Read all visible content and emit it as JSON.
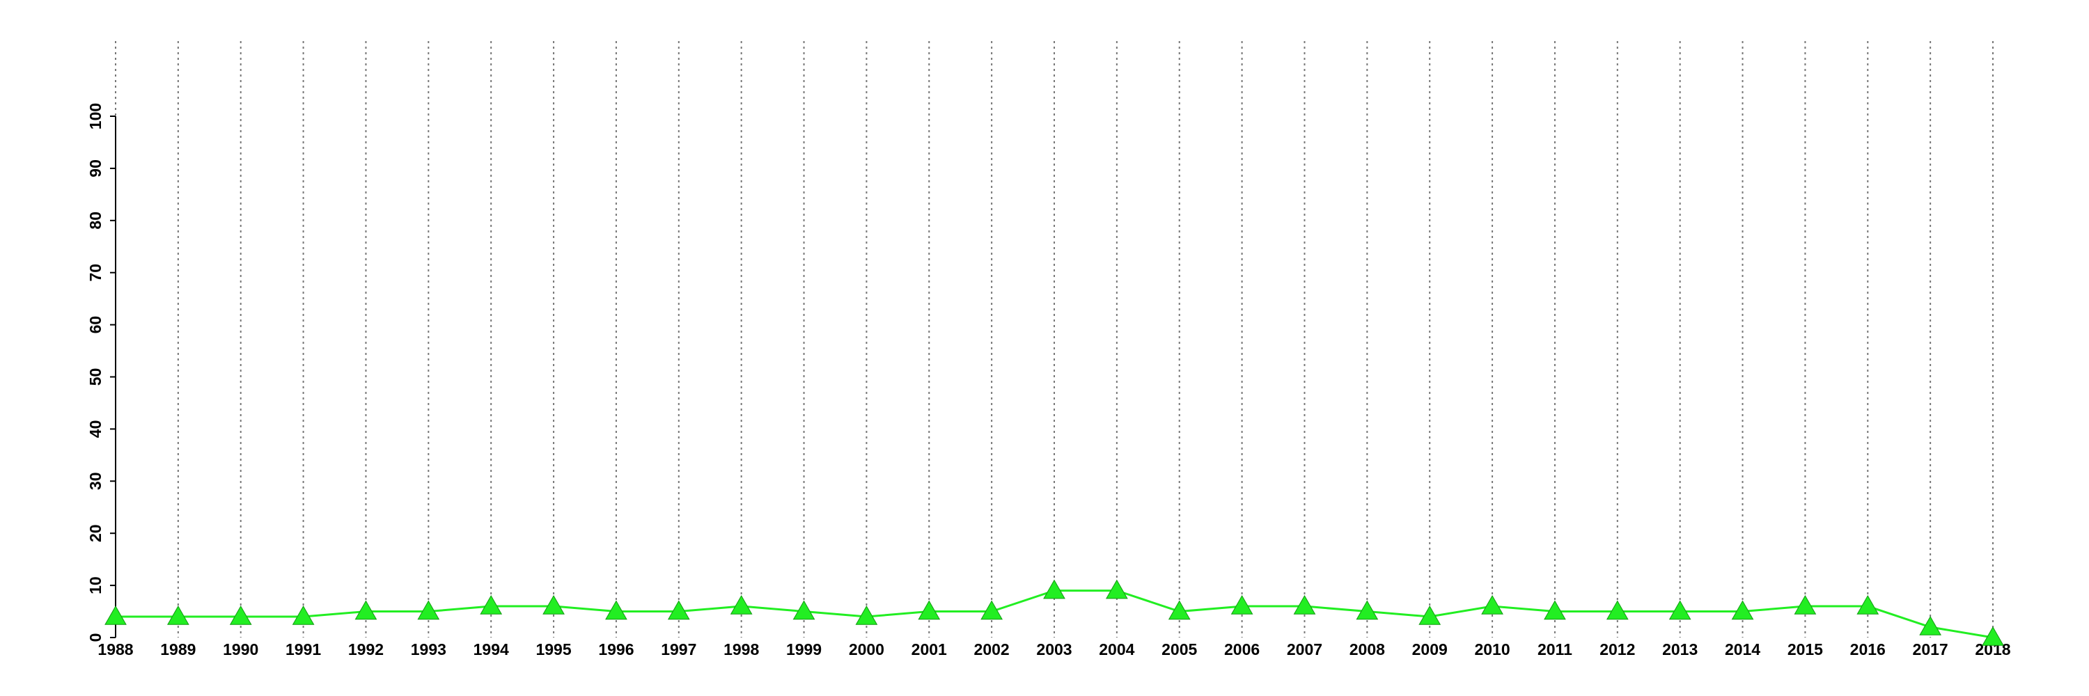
{
  "chart_data": {
    "type": "line",
    "categories": [
      "1988",
      "1989",
      "1990",
      "1991",
      "1992",
      "1993",
      "1994",
      "1995",
      "1996",
      "1997",
      "1998",
      "1999",
      "2000",
      "2001",
      "2002",
      "2003",
      "2004",
      "2005",
      "2006",
      "2007",
      "2008",
      "2009",
      "2010",
      "2011",
      "2012",
      "2013",
      "2014",
      "2015",
      "2016",
      "2017",
      "2018"
    ],
    "series": [
      {
        "color": "#22ee22",
        "values": [
          4,
          4,
          4,
          4,
          5,
          5,
          6,
          6,
          5,
          5,
          6,
          5,
          4,
          5,
          5,
          9,
          9,
          5,
          6,
          6,
          5,
          4,
          6,
          5,
          5,
          5,
          5,
          6,
          6,
          2,
          0
        ]
      }
    ],
    "ylim": [
      0,
      100
    ],
    "yticks": [
      0,
      10,
      20,
      30,
      40,
      50,
      60,
      70,
      80,
      90,
      100
    ],
    "grid": true
  }
}
